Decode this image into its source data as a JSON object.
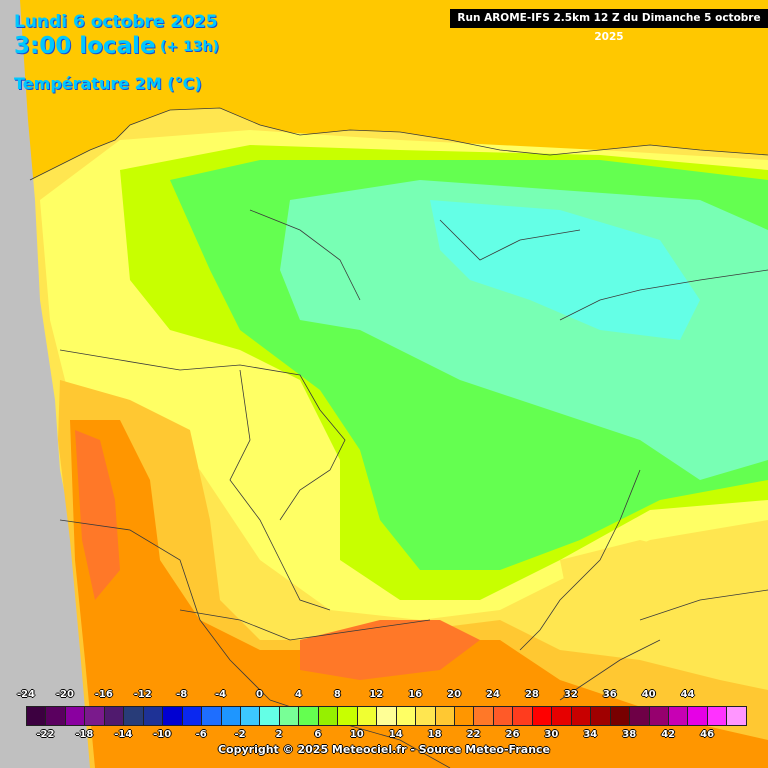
{
  "header": {
    "date": "Lundi 6 octobre 2025",
    "time": "3:00 locale",
    "offset": "(+ 13h)",
    "parameter": "Température 2M (°C)",
    "run": "Run AROME-IFS 2.5km 12 Z du Dimanche 5 octobre 2025"
  },
  "legend": {
    "top_labels": [
      "-24",
      "-20",
      "-16",
      "-12",
      "-8",
      "-4",
      "0",
      "4",
      "8",
      "12",
      "16",
      "20",
      "24",
      "28",
      "32",
      "36",
      "40",
      "44"
    ],
    "bottom_labels": [
      "-22",
      "-18",
      "-14",
      "-10",
      "-6",
      "-2",
      "2",
      "6",
      "10",
      "14",
      "18",
      "22",
      "26",
      "30",
      "34",
      "38",
      "42",
      "46"
    ],
    "colors": [
      "#3c0040",
      "#5a005f",
      "#8a00a0",
      "#7a1a8c",
      "#501a6e",
      "#283c78",
      "#1e3296",
      "#0000d2",
      "#0a28f0",
      "#1e6eff",
      "#1e96ff",
      "#3cc8ff",
      "#64ffe6",
      "#78ff96",
      "#64ff50",
      "#96f000",
      "#c8ff00",
      "#f0ff32",
      "#ffff96",
      "#ffff64",
      "#ffe650",
      "#ffc832",
      "#ff9600",
      "#ff7828",
      "#ff5a28",
      "#ff3c1e",
      "#ff0000",
      "#e60000",
      "#c80000",
      "#a00000",
      "#780000",
      "#6e0046",
      "#96006e",
      "#c800b4",
      "#e600e6",
      "#ff32ff",
      "#ff96ff"
    ]
  },
  "footer": {
    "copyright": "Copyright © 2025 Meteociel.fr - Source Meteo-France"
  },
  "map": {
    "colors": {
      "sea": "#c0c0c0",
      "cold": "#64ffe6",
      "green": "#64ff50",
      "lime": "#c8ff00",
      "yellow": "#ffff64",
      "warm": "#ffc832",
      "orange": "#ff9600",
      "hot": "#ff7828"
    }
  }
}
